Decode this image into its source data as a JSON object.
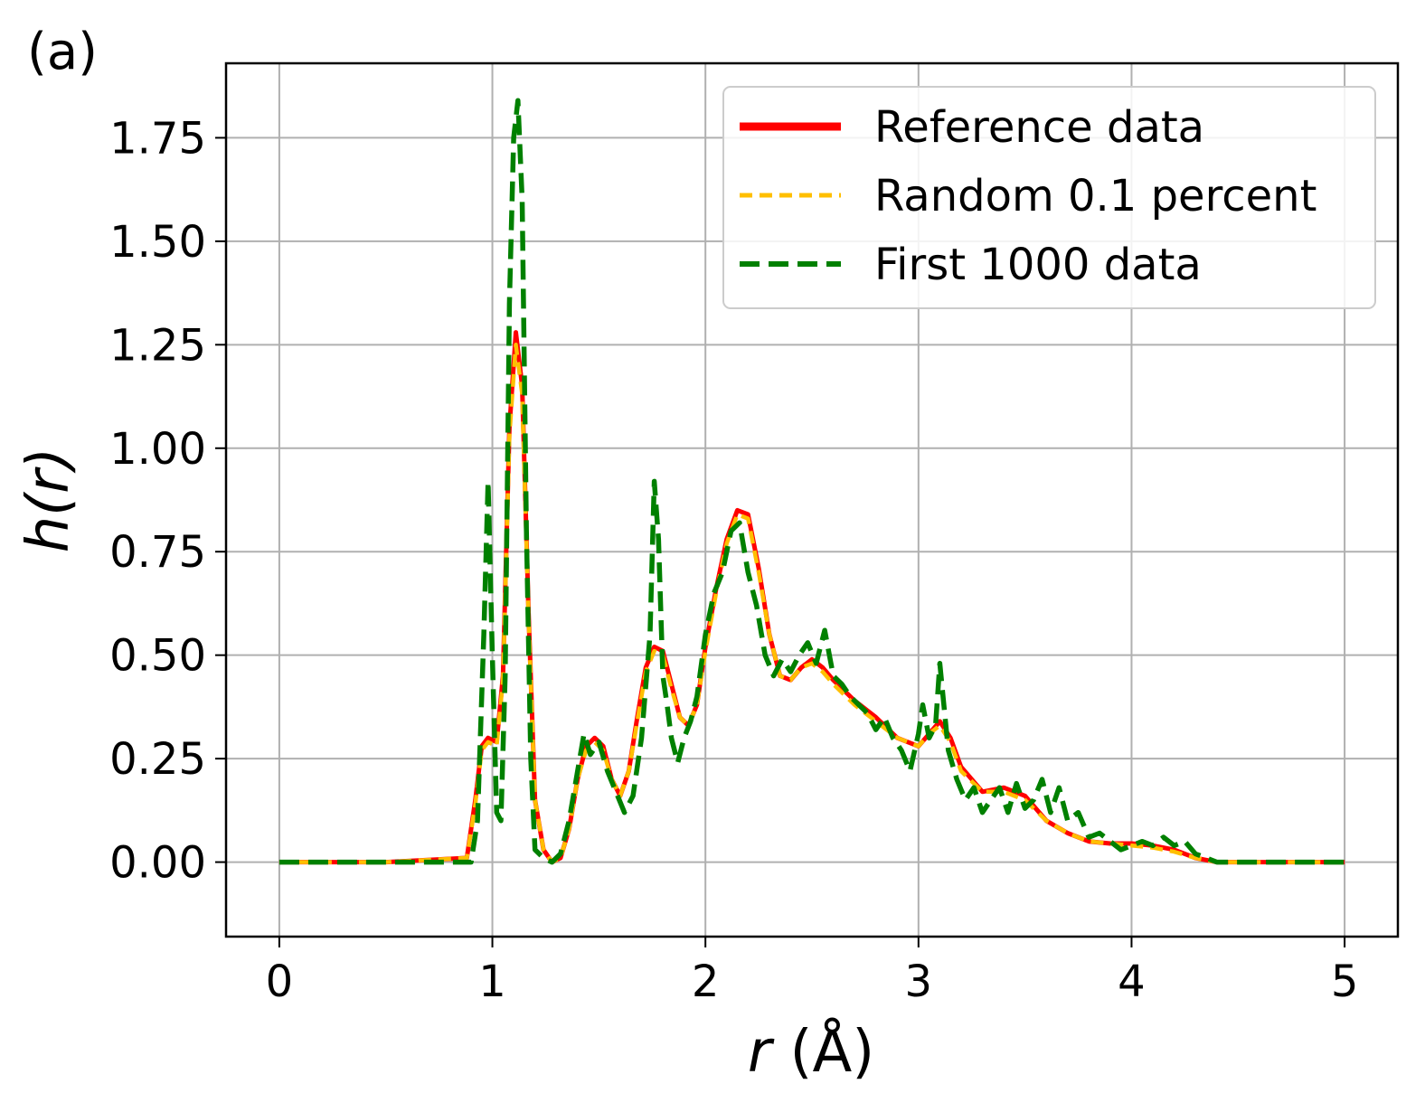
{
  "panel_label": "(a)",
  "chart_data": {
    "type": "line",
    "title": "",
    "xlabel_var": "r",
    "xlabel_unit": " (Å)",
    "ylabel_func": "h(",
    "ylabel_var": "r",
    "ylabel_close": ")",
    "xlim": [
      -0.25,
      5.25
    ],
    "ylim": [
      -0.18,
      1.93
    ],
    "x_ticks": [
      0,
      1,
      2,
      3,
      4,
      5
    ],
    "x_tick_labels": [
      "0",
      "1",
      "2",
      "3",
      "4",
      "5"
    ],
    "y_ticks": [
      0,
      0.25,
      0.5,
      0.75,
      1.0,
      1.25,
      1.5,
      1.75
    ],
    "y_tick_labels": [
      "0.00",
      "0.25",
      "0.50",
      "0.75",
      "1.00",
      "1.25",
      "1.50",
      "1.75"
    ],
    "grid": true,
    "legend_position": "top-right",
    "series": [
      {
        "name": "Reference data",
        "color": "#ff0000",
        "style": "solid",
        "x": [
          0,
          0.5,
          0.88,
          0.92,
          0.95,
          0.98,
          1.02,
          1.05,
          1.08,
          1.11,
          1.14,
          1.17,
          1.2,
          1.24,
          1.28,
          1.32,
          1.36,
          1.4,
          1.44,
          1.48,
          1.52,
          1.56,
          1.6,
          1.64,
          1.68,
          1.72,
          1.76,
          1.8,
          1.84,
          1.88,
          1.92,
          1.96,
          2.0,
          2.05,
          2.1,
          2.15,
          2.2,
          2.25,
          2.3,
          2.35,
          2.4,
          2.45,
          2.5,
          2.55,
          2.6,
          2.7,
          2.8,
          2.9,
          3.0,
          3.05,
          3.1,
          3.15,
          3.2,
          3.3,
          3.4,
          3.5,
          3.6,
          3.7,
          3.8,
          3.9,
          4.0,
          4.1,
          4.2,
          4.3,
          4.4,
          4.6,
          5.0
        ],
        "y": [
          0,
          0,
          0.01,
          0.15,
          0.28,
          0.3,
          0.29,
          0.45,
          1.05,
          1.28,
          1.15,
          0.6,
          0.15,
          0.03,
          0.0,
          0.01,
          0.08,
          0.2,
          0.28,
          0.3,
          0.28,
          0.2,
          0.16,
          0.22,
          0.35,
          0.47,
          0.52,
          0.51,
          0.43,
          0.35,
          0.33,
          0.38,
          0.52,
          0.66,
          0.78,
          0.85,
          0.84,
          0.71,
          0.55,
          0.45,
          0.44,
          0.47,
          0.49,
          0.47,
          0.44,
          0.39,
          0.35,
          0.3,
          0.28,
          0.31,
          0.34,
          0.3,
          0.23,
          0.17,
          0.18,
          0.16,
          0.1,
          0.07,
          0.05,
          0.045,
          0.045,
          0.04,
          0.03,
          0.01,
          0.0,
          0.0,
          0.0
        ]
      },
      {
        "name": "Random 0.1 percent",
        "color": "#ffbf00",
        "style": "dashed-short",
        "x": [
          0,
          0.5,
          0.88,
          0.92,
          0.95,
          0.98,
          1.02,
          1.05,
          1.08,
          1.11,
          1.14,
          1.17,
          1.2,
          1.24,
          1.28,
          1.32,
          1.36,
          1.4,
          1.44,
          1.48,
          1.52,
          1.56,
          1.6,
          1.64,
          1.68,
          1.72,
          1.76,
          1.8,
          1.84,
          1.88,
          1.92,
          1.96,
          2.0,
          2.05,
          2.1,
          2.15,
          2.2,
          2.25,
          2.3,
          2.35,
          2.4,
          2.45,
          2.5,
          2.55,
          2.6,
          2.7,
          2.8,
          2.9,
          3.0,
          3.05,
          3.1,
          3.15,
          3.2,
          3.3,
          3.4,
          3.5,
          3.6,
          3.7,
          3.8,
          3.9,
          4.0,
          4.1,
          4.2,
          4.3,
          4.4,
          4.6,
          5.0
        ],
        "y": [
          0,
          0,
          0.01,
          0.14,
          0.27,
          0.29,
          0.28,
          0.44,
          1.03,
          1.25,
          1.13,
          0.59,
          0.15,
          0.03,
          0.0,
          0.01,
          0.08,
          0.2,
          0.27,
          0.29,
          0.27,
          0.2,
          0.16,
          0.22,
          0.34,
          0.46,
          0.51,
          0.5,
          0.42,
          0.35,
          0.33,
          0.38,
          0.51,
          0.65,
          0.77,
          0.84,
          0.83,
          0.7,
          0.55,
          0.45,
          0.44,
          0.47,
          0.48,
          0.46,
          0.43,
          0.38,
          0.34,
          0.3,
          0.28,
          0.31,
          0.33,
          0.29,
          0.22,
          0.17,
          0.17,
          0.15,
          0.1,
          0.07,
          0.05,
          0.045,
          0.04,
          0.035,
          0.025,
          0.01,
          0.0,
          0.0,
          0.0
        ]
      },
      {
        "name": "First 1000 data",
        "color": "#008000",
        "style": "dashed-long",
        "x": [
          0,
          0.5,
          0.9,
          0.93,
          0.96,
          0.98,
          1.0,
          1.02,
          1.04,
          1.06,
          1.08,
          1.1,
          1.12,
          1.14,
          1.16,
          1.18,
          1.2,
          1.24,
          1.28,
          1.32,
          1.36,
          1.4,
          1.43,
          1.46,
          1.5,
          1.54,
          1.58,
          1.62,
          1.66,
          1.7,
          1.74,
          1.76,
          1.78,
          1.8,
          1.82,
          1.84,
          1.87,
          1.9,
          1.93,
          1.96,
          2.0,
          2.04,
          2.08,
          2.12,
          2.16,
          2.2,
          2.24,
          2.28,
          2.32,
          2.36,
          2.4,
          2.44,
          2.48,
          2.52,
          2.56,
          2.6,
          2.64,
          2.68,
          2.72,
          2.76,
          2.8,
          2.84,
          2.88,
          2.92,
          2.96,
          3.0,
          3.02,
          3.05,
          3.08,
          3.1,
          3.14,
          3.18,
          3.22,
          3.26,
          3.3,
          3.34,
          3.38,
          3.42,
          3.46,
          3.5,
          3.54,
          3.58,
          3.62,
          3.66,
          3.7,
          3.75,
          3.8,
          3.85,
          3.9,
          3.95,
          4.0,
          4.05,
          4.1,
          4.15,
          4.2,
          4.25,
          4.3,
          4.35,
          4.4,
          4.6,
          5.0
        ],
        "y": [
          0,
          0,
          0.0,
          0.1,
          0.55,
          0.92,
          0.5,
          0.12,
          0.1,
          0.45,
          1.35,
          1.75,
          1.84,
          1.6,
          0.8,
          0.25,
          0.03,
          0.01,
          0.0,
          0.02,
          0.1,
          0.22,
          0.31,
          0.26,
          0.29,
          0.22,
          0.17,
          0.12,
          0.16,
          0.3,
          0.55,
          0.92,
          0.78,
          0.45,
          0.38,
          0.3,
          0.24,
          0.3,
          0.34,
          0.4,
          0.55,
          0.65,
          0.7,
          0.8,
          0.82,
          0.7,
          0.62,
          0.5,
          0.45,
          0.49,
          0.46,
          0.5,
          0.53,
          0.48,
          0.56,
          0.45,
          0.43,
          0.4,
          0.38,
          0.36,
          0.32,
          0.35,
          0.3,
          0.27,
          0.22,
          0.31,
          0.38,
          0.3,
          0.33,
          0.48,
          0.27,
          0.2,
          0.15,
          0.18,
          0.12,
          0.15,
          0.18,
          0.12,
          0.19,
          0.13,
          0.15,
          0.2,
          0.12,
          0.18,
          0.1,
          0.12,
          0.06,
          0.07,
          0.05,
          0.03,
          0.04,
          0.05,
          0.04,
          0.06,
          0.04,
          0.05,
          0.02,
          0.01,
          0.0,
          0.0,
          0.0
        ]
      }
    ]
  }
}
